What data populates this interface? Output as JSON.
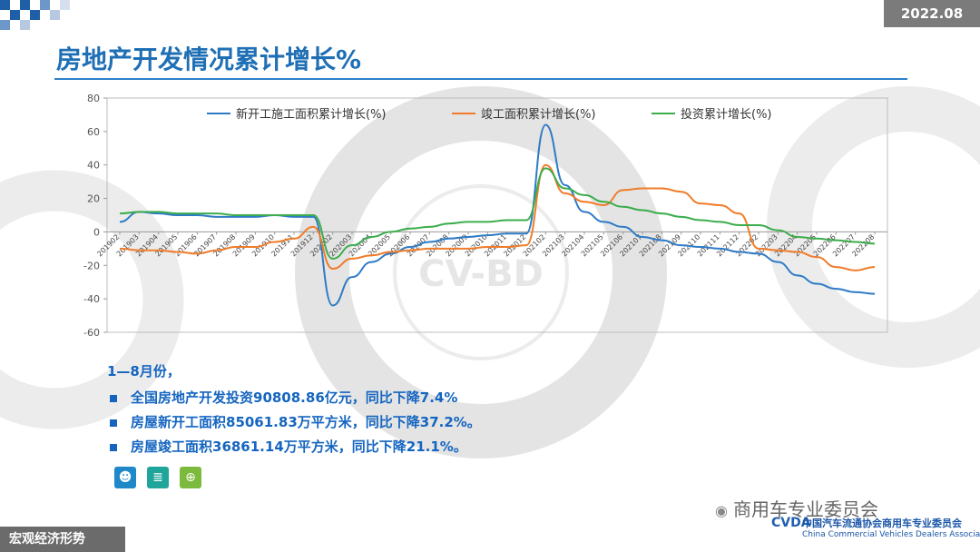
{
  "header": {
    "date": "2022.08",
    "title": "房地产开发情况累计增长%"
  },
  "watermark": {
    "text": "CV-BD"
  },
  "chart_data": {
    "type": "line",
    "title": "",
    "ylim": [
      -60,
      80
    ],
    "yticks": [
      80,
      60,
      40,
      20,
      0,
      -20,
      -40,
      -60
    ],
    "legend_position": "top",
    "categories": [
      "201902",
      "201903",
      "201904",
      "201905",
      "201906",
      "201907",
      "201908",
      "201909",
      "201910",
      "201911",
      "201912",
      "202002",
      "202003",
      "202004",
      "202005",
      "202006",
      "202007",
      "202008",
      "202009",
      "202010",
      "202011",
      "202012",
      "202102",
      "202103",
      "202104",
      "202105",
      "202106",
      "202107",
      "202108",
      "202109",
      "202110",
      "202111",
      "202112",
      "202202",
      "202203",
      "202204",
      "202205",
      "202206",
      "202207",
      "202208"
    ],
    "series": [
      {
        "name": "新开工施工面积累计增长(%)",
        "color": "#2e7bc6",
        "values": [
          6,
          12,
          11,
          10,
          10,
          9,
          9,
          9,
          10,
          9,
          9,
          -44,
          -27,
          -18,
          -13,
          -9,
          -6,
          -4,
          -3,
          -2,
          -1,
          -1,
          64,
          28,
          12,
          6,
          3,
          -3,
          -5,
          -8,
          -9,
          -10,
          -12,
          -13,
          -18,
          -26,
          -31,
          -34,
          -36,
          -37
        ]
      },
      {
        "name": "竣工面积累计增长(%)",
        "color": "#f07c2a",
        "values": [
          -10,
          -11,
          -11,
          -12,
          -13,
          -11,
          -9,
          -9,
          -6,
          -4,
          3,
          -22,
          -16,
          -14,
          -12,
          -11,
          -10,
          -10,
          -10,
          -9,
          -9,
          -8,
          40,
          23,
          18,
          16,
          25,
          26,
          26,
          24,
          17,
          16,
          11,
          -10,
          -11,
          -12,
          -15,
          -21,
          -23,
          -21
        ]
      },
      {
        "name": "投资累计增长(%)",
        "color": "#3cad4d",
        "values": [
          11,
          12,
          12,
          11,
          11,
          11,
          10,
          10,
          10,
          10,
          10,
          -16,
          -8,
          -3,
          0,
          2,
          3,
          5,
          6,
          6,
          7,
          7,
          38,
          26,
          22,
          18,
          15,
          13,
          11,
          9,
          7,
          6,
          4,
          4,
          1,
          -3,
          -4,
          -5,
          -6,
          -7
        ]
      }
    ]
  },
  "notes": {
    "lead": "1—8月份，",
    "items": [
      "全国房地产开发投资90808.86亿元，同比下降7.4%",
      "房屋新开工面积85061.83万平方米，同比下降37.2%。",
      "房屋竣工面积36861.14万平方米，同比下降21.1%。"
    ]
  },
  "icons": [
    {
      "name": "person-icon",
      "color": "#1e88c8",
      "glyph": "☻"
    },
    {
      "name": "coins-icon",
      "color": "#1fa59a",
      "glyph": "≣"
    },
    {
      "name": "cart-icon",
      "color": "#7cba3d",
      "glyph": "⊕"
    }
  ],
  "footer": {
    "section": "宏观经济形势",
    "wechat": "商用车专业委员会",
    "assoc_cn": "中国汽车流通协会商用车专业委员会",
    "assoc_en": "China Commercial Vehicles Dealers Association",
    "assoc_logo": "CVDA"
  }
}
